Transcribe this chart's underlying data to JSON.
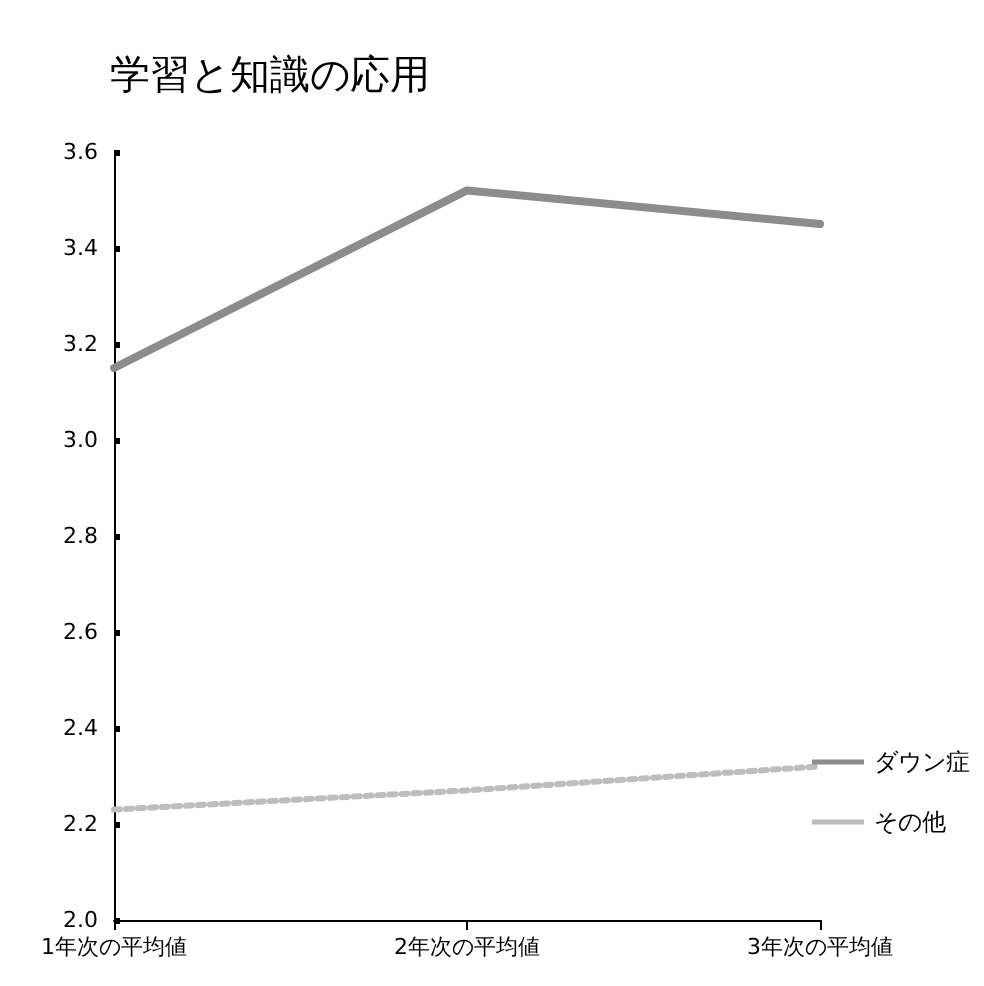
{
  "chart_data": {
    "type": "line",
    "title": "学習と知識の応用",
    "categories": [
      "1年次の平均値",
      "2年次の平均値",
      "3年次の平均値"
    ],
    "series": [
      {
        "name": "ダウン症",
        "color": "#8c8c8c",
        "line_style": "solid",
        "values": [
          3.15,
          3.52,
          3.45
        ]
      },
      {
        "name": "その他",
        "color": "#bdbdbd",
        "line_style": "dotted",
        "values": [
          2.23,
          2.27,
          2.32
        ]
      }
    ],
    "ylim": [
      2.0,
      3.6
    ],
    "yticks": [
      {
        "value": 2.0,
        "label": "2.0"
      },
      {
        "value": 2.2,
        "label": "2.2"
      },
      {
        "value": 2.4,
        "label": "2.4"
      },
      {
        "value": 2.6,
        "label": "2.6"
      },
      {
        "value": 2.8,
        "label": "2.8"
      },
      {
        "value": 3.0,
        "label": "3.0"
      },
      {
        "value": 3.2,
        "label": "3.2"
      },
      {
        "value": 3.4,
        "label": "3.4"
      },
      {
        "value": 3.6,
        "label": "3.6"
      }
    ],
    "grid": false,
    "legend": "right",
    "marker": "none"
  }
}
